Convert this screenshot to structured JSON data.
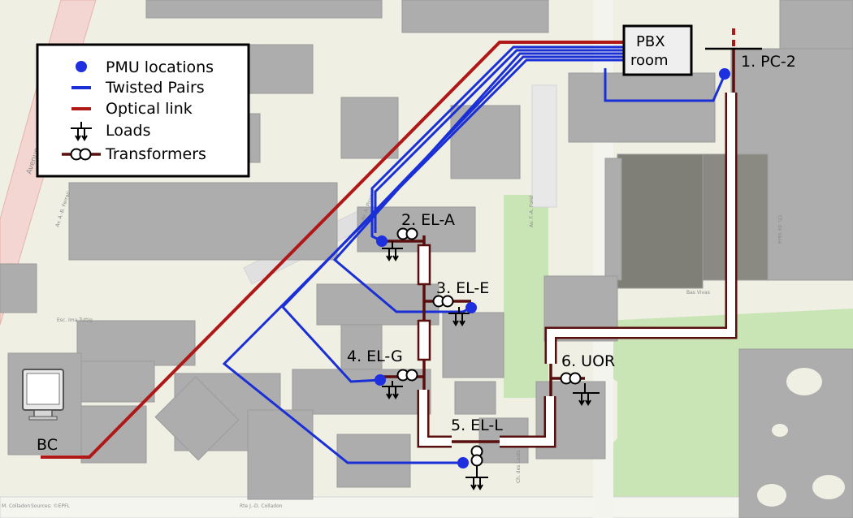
{
  "legend": {
    "items": [
      {
        "icon": "pmu-dot-icon",
        "label": "PMU locations"
      },
      {
        "icon": "twisted-pair-line-icon",
        "label": "Twisted Pairs"
      },
      {
        "icon": "optical-line-icon",
        "label": "Optical link"
      },
      {
        "icon": "load-symbol-icon",
        "label": "Loads"
      },
      {
        "icon": "transformer-symbol-icon",
        "label": "Transformers"
      }
    ]
  },
  "pbx": {
    "line1": "PBX",
    "line2": "room"
  },
  "substations": {
    "pc2": "1. PC-2",
    "ela": "2. EL-A",
    "ele": "3. EL-E",
    "elg": "4. EL-G",
    "ell": "5. EL-L",
    "uor": "6. UOR"
  },
  "bc_label": "BC",
  "street_labels": {
    "avenue": "Avenue du Tir Fédéral",
    "ferrari": "Av. A.-B. Ferrari",
    "piccard": "Av. A. Piccard",
    "forel": "Av. F.-A. Forel",
    "lauts": "Ch. des Lauts",
    "colladon": "Rte J.-D. Colladon",
    "left_bottom": "M. Colladon",
    "sources": "Sources: ©EPFL",
    "escalier": "Esc. Ima Tuttig",
    "bas": "Bas Vivas",
    "vasa": "Ch. de Vasa"
  },
  "colors": {
    "pmu": "#1e2fe0",
    "twisted_pair": "#1a2fd6",
    "optical": "#b01818",
    "grid_line": "#5a0f0f",
    "building": "#adadad",
    "ground": "#efefe4",
    "green": "#c7e4b4"
  }
}
